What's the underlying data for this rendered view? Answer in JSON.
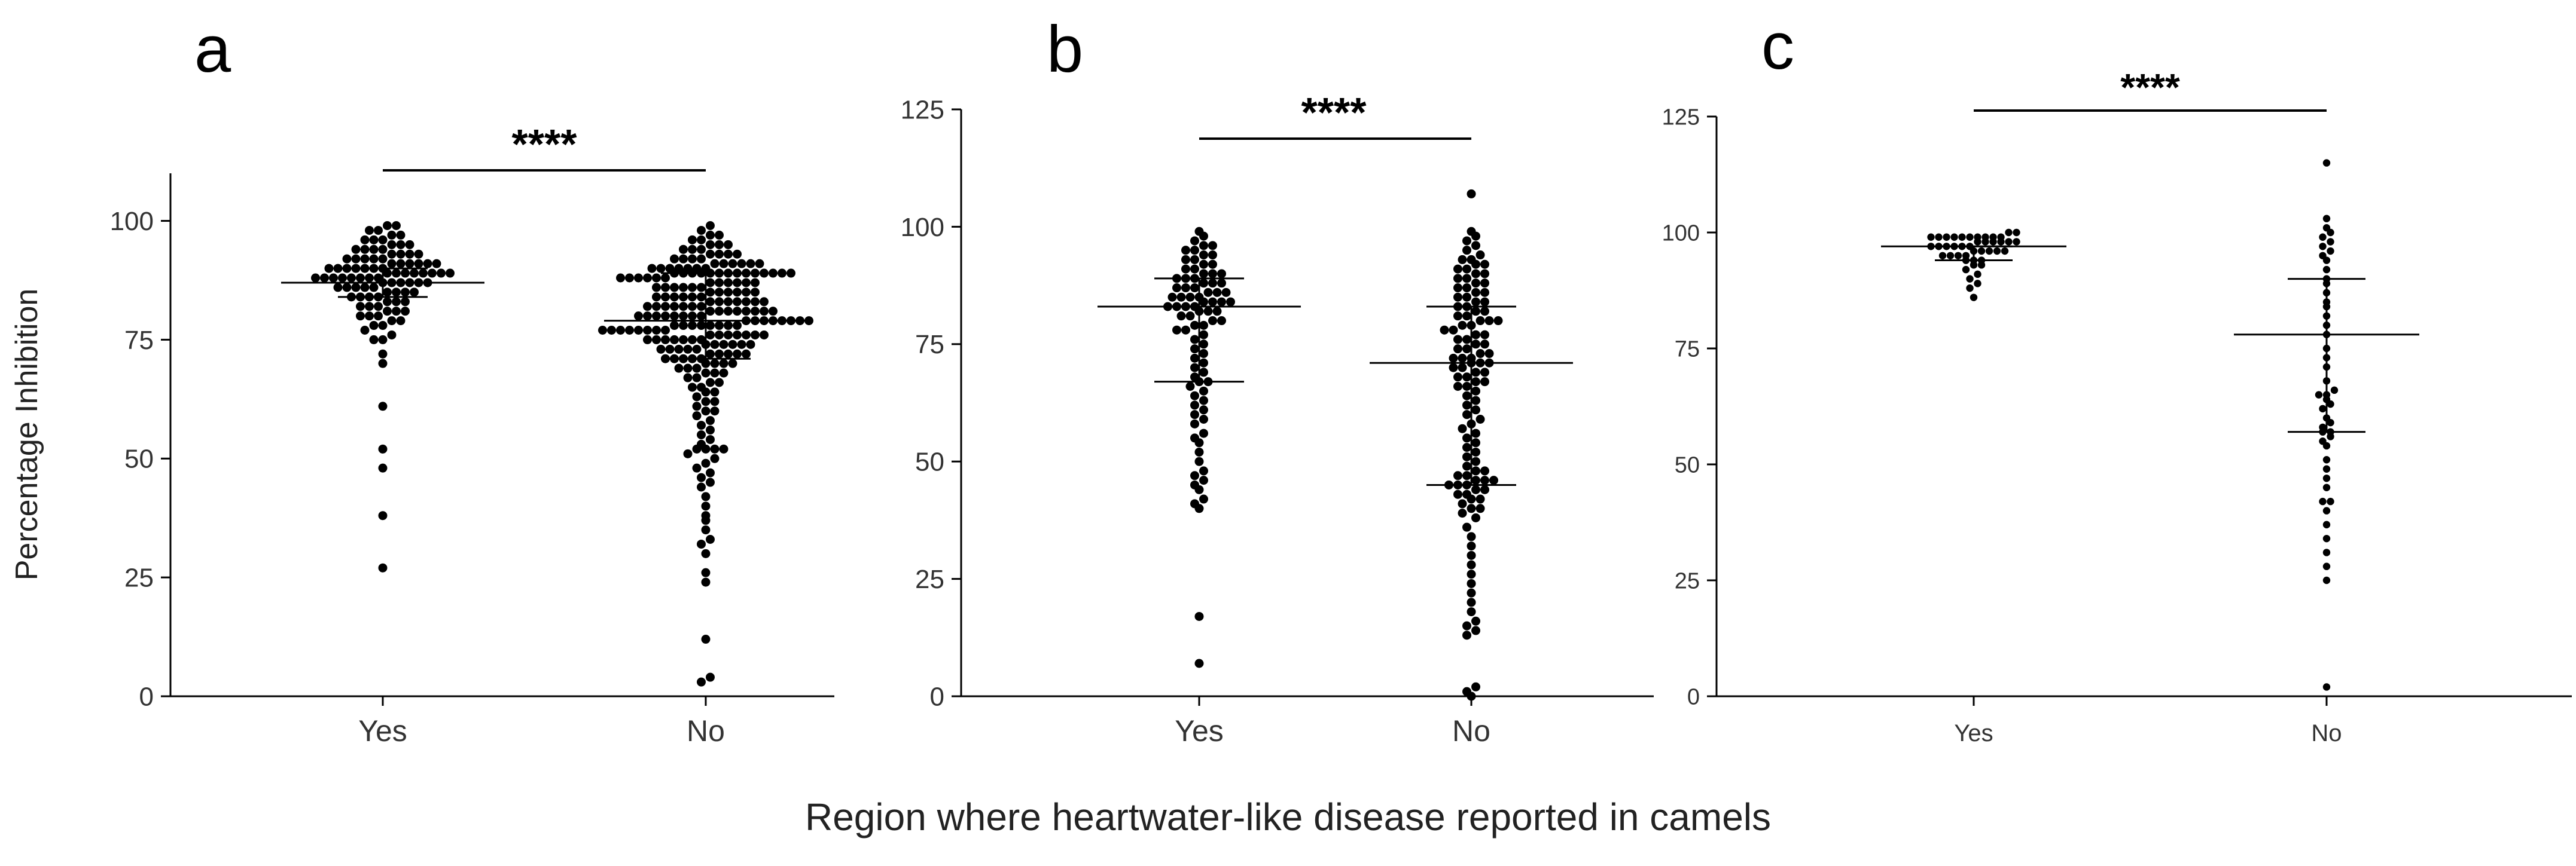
{
  "figure": {
    "xlabel": "Region where heartwater-like  disease reported in camels"
  },
  "chart_data": [
    {
      "panel": "a",
      "type": "scatter",
      "subtype": "dot-plot",
      "ylabel": "Percentage Inhibition",
      "xlabel": "",
      "categories": [
        "Yes",
        "No"
      ],
      "ylim": [
        0,
        110
      ],
      "yticks": [
        0,
        25,
        50,
        75,
        100
      ],
      "significance": "****",
      "groups": [
        {
          "name": "Yes",
          "values": [
            27,
            38,
            48,
            52,
            61,
            70,
            72,
            75,
            75,
            76,
            77,
            78,
            78,
            79,
            79,
            80,
            80,
            80,
            81,
            81,
            81,
            82,
            82,
            82,
            83,
            83,
            83,
            84,
            84,
            84,
            84,
            85,
            85,
            85,
            85,
            86,
            86,
            86,
            86,
            86,
            87,
            87,
            87,
            87,
            87,
            87,
            88,
            88,
            88,
            88,
            88,
            88,
            88,
            88,
            89,
            89,
            89,
            89,
            89,
            89,
            89,
            89,
            90,
            90,
            90,
            90,
            90,
            90,
            90,
            91,
            91,
            91,
            91,
            91,
            91,
            92,
            92,
            92,
            92,
            92,
            93,
            93,
            93,
            93,
            94,
            94,
            94,
            94,
            95,
            95,
            95,
            96,
            96,
            96,
            97,
            97,
            98,
            98,
            99,
            99
          ],
          "median": 87,
          "q1": 84,
          "q3": 90
        },
        {
          "name": "No",
          "values": [
            3,
            4,
            12,
            24,
            26,
            30,
            32,
            33,
            35,
            37,
            38,
            40,
            42,
            44,
            45,
            46,
            47,
            48,
            49,
            50,
            51,
            52,
            52,
            52,
            52,
            53,
            54,
            55,
            56,
            57,
            58,
            59,
            60,
            60,
            61,
            62,
            62,
            63,
            64,
            64,
            65,
            65,
            66,
            66,
            67,
            67,
            68,
            68,
            68,
            69,
            69,
            69,
            70,
            70,
            70,
            70,
            71,
            71,
            71,
            71,
            71,
            72,
            72,
            72,
            72,
            72,
            73,
            73,
            73,
            73,
            73,
            74,
            74,
            74,
            74,
            74,
            74,
            75,
            75,
            75,
            75,
            75,
            75,
            75,
            76,
            76,
            76,
            76,
            76,
            76,
            76,
            77,
            77,
            77,
            77,
            77,
            77,
            77,
            77,
            78,
            78,
            78,
            78,
            78,
            78,
            78,
            78,
            79,
            79,
            79,
            79,
            79,
            79,
            79,
            79,
            80,
            80,
            80,
            80,
            80,
            80,
            80,
            80,
            81,
            81,
            81,
            81,
            81,
            81,
            81,
            81,
            82,
            82,
            82,
            82,
            82,
            82,
            82,
            83,
            83,
            83,
            83,
            83,
            83,
            83,
            84,
            84,
            84,
            84,
            84,
            84,
            85,
            85,
            85,
            85,
            85,
            85,
            86,
            86,
            86,
            86,
            86,
            86,
            87,
            87,
            87,
            87,
            87,
            87,
            88,
            88,
            88,
            88,
            88,
            88,
            89,
            89,
            89,
            89,
            89,
            89,
            89,
            89,
            89,
            89,
            89,
            89,
            89,
            89,
            90,
            90,
            90,
            90,
            90,
            90,
            90,
            91,
            91,
            91,
            91,
            91,
            91,
            92,
            92,
            92,
            92,
            93,
            93,
            93,
            93,
            94,
            94,
            94,
            95,
            95,
            95,
            96,
            96,
            97,
            97,
            98,
            99
          ],
          "median": 79,
          "q1": 71,
          "q3": 89
        }
      ]
    },
    {
      "panel": "b",
      "type": "scatter",
      "subtype": "dot-plot",
      "ylabel": "",
      "xlabel": "",
      "categories": [
        "Yes",
        "No"
      ],
      "ylim": [
        0,
        125
      ],
      "yticks": [
        0,
        25,
        50,
        75,
        100,
        125
      ],
      "significance": "****",
      "groups": [
        {
          "name": "Yes",
          "values": [
            7,
            17,
            40,
            41,
            42,
            44,
            45,
            46,
            47,
            48,
            50,
            52,
            54,
            55,
            56,
            58,
            59,
            60,
            61,
            62,
            63,
            64,
            65,
            66,
            67,
            67,
            68,
            69,
            70,
            71,
            72,
            73,
            74,
            75,
            76,
            77,
            78,
            78,
            79,
            79,
            80,
            80,
            81,
            81,
            82,
            82,
            82,
            83,
            83,
            83,
            83,
            84,
            84,
            84,
            84,
            85,
            85,
            85,
            85,
            86,
            86,
            86,
            87,
            87,
            87,
            88,
            88,
            88,
            89,
            89,
            89,
            90,
            90,
            90,
            91,
            91,
            92,
            92,
            93,
            93,
            94,
            94,
            95,
            95,
            96,
            96,
            97,
            98,
            99
          ],
          "median": 83,
          "q1": 67,
          "q3": 89
        },
        {
          "name": "No",
          "values": [
            0,
            1,
            2,
            13,
            14,
            15,
            16,
            18,
            20,
            22,
            24,
            26,
            28,
            30,
            32,
            34,
            36,
            38,
            39,
            40,
            40,
            41,
            42,
            42,
            43,
            43,
            44,
            44,
            45,
            45,
            45,
            46,
            46,
            46,
            47,
            47,
            48,
            48,
            49,
            50,
            51,
            52,
            53,
            54,
            55,
            56,
            57,
            58,
            59,
            60,
            61,
            62,
            63,
            64,
            65,
            66,
            66,
            67,
            67,
            68,
            68,
            69,
            69,
            70,
            70,
            71,
            71,
            71,
            72,
            72,
            72,
            73,
            73,
            74,
            74,
            75,
            75,
            76,
            76,
            77,
            77,
            78,
            78,
            79,
            79,
            80,
            80,
            80,
            81,
            81,
            82,
            82,
            83,
            83,
            84,
            84,
            85,
            85,
            86,
            86,
            87,
            87,
            88,
            88,
            89,
            89,
            90,
            90,
            91,
            91,
            92,
            92,
            93,
            93,
            94,
            95,
            96,
            97,
            98,
            99,
            107
          ],
          "median": 71,
          "q1": 45,
          "q3": 83
        }
      ]
    },
    {
      "panel": "c",
      "type": "scatter",
      "subtype": "dot-plot",
      "ylabel": "",
      "xlabel": "",
      "categories": [
        "Yes",
        "No"
      ],
      "ylim": [
        0,
        125
      ],
      "yticks": [
        0,
        25,
        50,
        75,
        100,
        125
      ],
      "significance": "****",
      "groups": [
        {
          "name": "Yes",
          "values": [
            86,
            88,
            89,
            90,
            91,
            92,
            93,
            93,
            94,
            94,
            94,
            95,
            95,
            95,
            95,
            96,
            96,
            96,
            96,
            96,
            97,
            97,
            97,
            97,
            97,
            97,
            98,
            98,
            98,
            98,
            98,
            98,
            99,
            99,
            99,
            99,
            99,
            99,
            99,
            99,
            99,
            99,
            100,
            100
          ],
          "median": 97,
          "q1": 94,
          "q3": 97
        },
        {
          "name": "No",
          "values": [
            2,
            25,
            28,
            31,
            34,
            37,
            40,
            42,
            42,
            45,
            47,
            49,
            51,
            54,
            55,
            56,
            57,
            57,
            58,
            59,
            60,
            62,
            63,
            64,
            65,
            65,
            66,
            68,
            71,
            73,
            75,
            78,
            80,
            82,
            84,
            85,
            87,
            89,
            90,
            92,
            94,
            95,
            96,
            97,
            98,
            99,
            100,
            101,
            103,
            115
          ],
          "median": 78,
          "q1": 57,
          "q3": 90
        }
      ]
    }
  ]
}
